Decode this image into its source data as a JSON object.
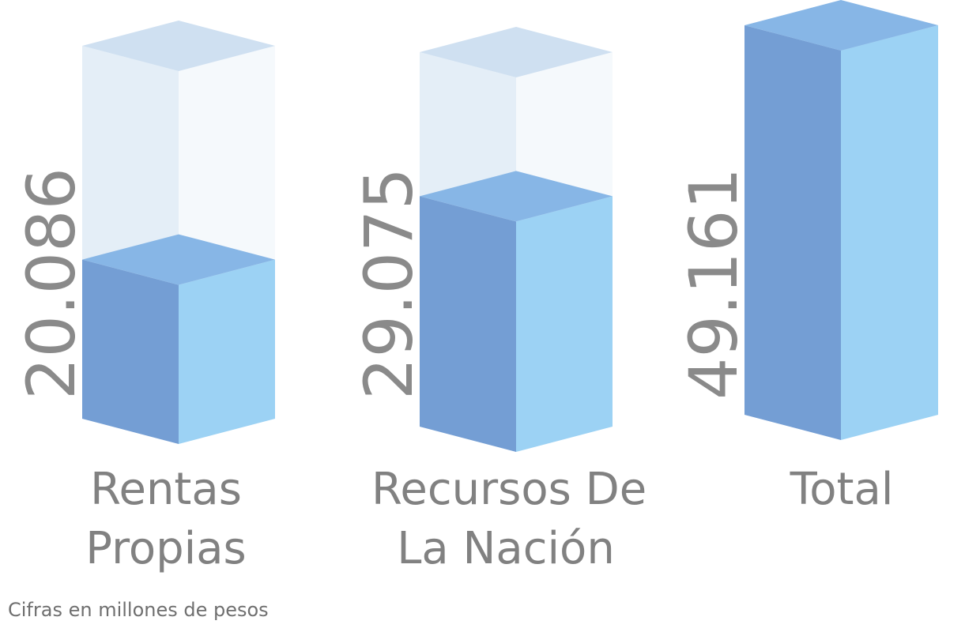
{
  "chart_data": {
    "type": "bar",
    "categories": [
      "Rentas Propias",
      "Recursos De La Nación",
      "Total"
    ],
    "category_lines": [
      [
        "Rentas",
        "Propias"
      ],
      [
        "Recursos De",
        "La Nación"
      ],
      [
        "Total"
      ]
    ],
    "values": [
      20086,
      29075,
      49161
    ],
    "value_labels": [
      "20.086",
      "29.075",
      "49.161"
    ],
    "ylim": [
      0,
      49161
    ],
    "note": "Cifras en millones de pesos",
    "colors": {
      "front_left": "#749ed4",
      "front_right": "#9cd2f4",
      "top": "#87b6e6",
      "ghost_left": "#e4eef7",
      "ghost_right": "#f5f9fc",
      "ghost_top": "#cfe0f1",
      "text": "#818181"
    }
  }
}
